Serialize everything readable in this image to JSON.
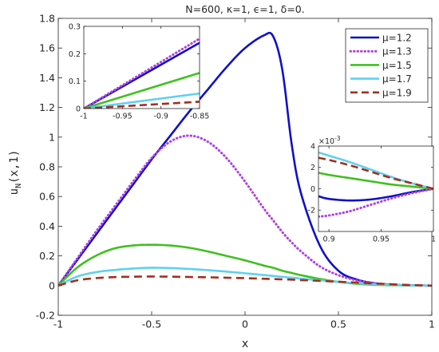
{
  "chart_data": {
    "type": "line",
    "title": "N=600, κ=1, ϵ=1, δ=0.",
    "xlabel": "x",
    "ylabel": "u_N(x,1)",
    "xlim": [
      -1,
      1
    ],
    "ylim": [
      -0.2,
      1.8
    ],
    "xticks": [
      -1,
      -0.5,
      0,
      0.5,
      1
    ],
    "xtick_labels": [
      "-1",
      "-0.5",
      "0",
      "0.5",
      "1"
    ],
    "yticks": [
      -0.2,
      0,
      0.2,
      0.4,
      0.6,
      0.8,
      1,
      1.2,
      1.4,
      1.6,
      1.8
    ],
    "ytick_labels": [
      "-0.2",
      "0",
      "0.2",
      "0.4",
      "0.6",
      "0.8",
      "1",
      "1.2",
      "1.4",
      "1.6",
      "1.8"
    ],
    "grid": false,
    "legend_position": "top-right",
    "x": [
      -1,
      -0.9,
      -0.8,
      -0.7,
      -0.6,
      -0.5,
      -0.4,
      -0.3,
      -0.2,
      -0.1,
      0,
      0.1,
      0.15,
      0.2,
      0.25,
      0.3,
      0.4,
      0.5,
      0.6,
      0.7,
      0.8,
      0.9,
      1
    ],
    "series": [
      {
        "name": "μ=1.2",
        "color": "#1010c8",
        "style": "solid",
        "values": [
          0,
          0.17,
          0.34,
          0.51,
          0.68,
          0.85,
          1.01,
          1.17,
          1.32,
          1.47,
          1.6,
          1.685,
          1.68,
          1.45,
          0.95,
          0.62,
          0.27,
          0.1,
          0.04,
          0.015,
          0.005,
          0.001,
          0
        ]
      },
      {
        "name": "μ=1.3",
        "color": "#b040e0",
        "style": "dotted",
        "values": [
          0,
          0.18,
          0.36,
          0.53,
          0.7,
          0.86,
          0.97,
          1.01,
          0.97,
          0.86,
          0.7,
          0.52,
          0.44,
          0.36,
          0.29,
          0.23,
          0.13,
          0.07,
          0.035,
          0.015,
          0.006,
          0.002,
          0
        ]
      },
      {
        "name": "μ=1.5",
        "color": "#40c020",
        "style": "solid",
        "values": [
          0,
          0.12,
          0.2,
          0.25,
          0.27,
          0.275,
          0.27,
          0.255,
          0.23,
          0.2,
          0.17,
          0.135,
          0.12,
          0.1,
          0.085,
          0.07,
          0.045,
          0.025,
          0.012,
          0.005,
          0.002,
          0.001,
          0
        ]
      },
      {
        "name": "μ=1.7",
        "color": "#60d0f0",
        "style": "solid",
        "values": [
          0,
          0.06,
          0.09,
          0.105,
          0.115,
          0.12,
          0.118,
          0.112,
          0.104,
          0.094,
          0.083,
          0.071,
          0.065,
          0.059,
          0.053,
          0.047,
          0.036,
          0.025,
          0.016,
          0.009,
          0.004,
          0.001,
          0
        ]
      },
      {
        "name": "μ=1.9",
        "color": "#a03020",
        "style": "dashed",
        "values": [
          0,
          0.035,
          0.05,
          0.057,
          0.06,
          0.061,
          0.06,
          0.058,
          0.056,
          0.053,
          0.05,
          0.046,
          0.044,
          0.042,
          0.04,
          0.037,
          0.032,
          0.026,
          0.02,
          0.014,
          0.008,
          0.003,
          0
        ]
      }
    ],
    "insets": [
      {
        "xlim": [
          -1,
          -0.85
        ],
        "ylim": [
          0,
          0.3
        ],
        "xtick_labels": [
          "-1",
          "-0.95",
          "-0.9",
          "-0.85"
        ],
        "xticks": [
          -1,
          -0.95,
          -0.9,
          -0.85
        ],
        "yticks": [
          0,
          0.1,
          0.2,
          0.3
        ],
        "ytick_labels": [
          "0",
          "0.1",
          "0.2",
          "0.3"
        ],
        "x": [
          -1,
          -0.85
        ],
        "series": [
          {
            "color": "#1010c8",
            "style": "solid",
            "values": [
              0,
              0.24
            ]
          },
          {
            "color": "#b040e0",
            "style": "dotted",
            "values": [
              0,
              0.255
            ]
          },
          {
            "color": "#40c020",
            "style": "solid",
            "values": [
              0,
              0.13
            ]
          },
          {
            "color": "#60d0f0",
            "style": "solid",
            "values": [
              0,
              0.055
            ]
          },
          {
            "color": "#a03020",
            "style": "dashed",
            "values": [
              0,
              0.025
            ]
          }
        ]
      },
      {
        "xlim": [
          0.89,
          1
        ],
        "ylim": [
          -0.004,
          0.004
        ],
        "exponent_label": "×10",
        "exponent_power": "-3",
        "xticks": [
          0.9,
          0.95,
          1
        ],
        "xtick_labels": [
          "0.9",
          "0.95",
          "1"
        ],
        "yticks": [
          -0.002,
          0,
          0.002,
          0.004
        ],
        "ytick_labels": [
          "-2",
          "0",
          "2",
          "4"
        ],
        "x": [
          0.89,
          0.9,
          0.92,
          0.94,
          0.96,
          0.98,
          1
        ],
        "series": [
          {
            "color": "#1010c8",
            "style": "solid",
            "values": [
              -0.0007,
              -0.00095,
              -0.0011,
              -0.001,
              -0.0007,
              -0.0003,
              0
            ]
          },
          {
            "color": "#b040e0",
            "style": "dotted",
            "values": [
              -0.0026,
              -0.0025,
              -0.0021,
              -0.0015,
              -0.0009,
              -0.0004,
              0
            ]
          },
          {
            "color": "#40c020",
            "style": "solid",
            "values": [
              0.0015,
              0.0013,
              0.001,
              0.0007,
              0.0004,
              0.0002,
              0
            ]
          },
          {
            "color": "#60d0f0",
            "style": "solid",
            "values": [
              0.0034,
              0.0031,
              0.0025,
              0.0018,
              0.0011,
              0.0005,
              0
            ]
          },
          {
            "color": "#a03020",
            "style": "dashed",
            "values": [
              0.0029,
              0.0027,
              0.0022,
              0.0016,
              0.001,
              0.0005,
              0
            ]
          }
        ]
      }
    ]
  }
}
